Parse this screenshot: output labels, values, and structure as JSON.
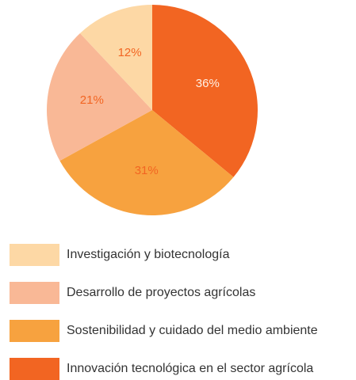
{
  "chart_data": {
    "type": "pie",
    "categories": [
      "Investigación y biotecnología",
      "Desarrollo de proyectos agrícolas",
      "Sostenibilidad y cuidado del medio ambiente",
      "Innovación tecnológica en el sector agrícola"
    ],
    "values": [
      12,
      21,
      31,
      36
    ],
    "value_labels": [
      "12%",
      "21%",
      "31%",
      "36%"
    ],
    "colors": [
      "#fdd8a5",
      "#f9b896",
      "#f7a23f",
      "#f26522"
    ],
    "legend": "bottom"
  }
}
